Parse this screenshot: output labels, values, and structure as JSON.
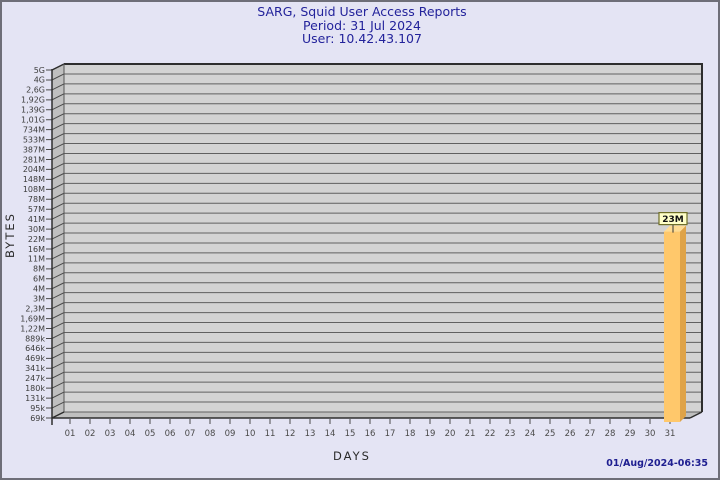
{
  "header": {
    "title": "SARG, Squid User Access Reports",
    "period": "Period: 31 Jul 2024",
    "user": "User: 10.42.43.107"
  },
  "footer": {
    "generated_at": "01/Aug/2024-06:35"
  },
  "colors": {
    "page_bg": "#E4E4F4",
    "title_text": "#23239B",
    "timestamp_text": "#1E1E90",
    "plot_bg": "#D3D3D3",
    "wall_bg": "#BFBFBF",
    "grid_line": "#606060",
    "edge_line": "#2E2E2E",
    "bar_front": "#FFC86B",
    "bar_side": "#DFA348",
    "bar_top": "#FFDC93",
    "annotation_bg": "#FFFFC8",
    "annotation_border": "#6F6F28",
    "axis_text": "#3C3C3C"
  },
  "chart_data": {
    "type": "bar",
    "title": "SARG, Squid User Access Reports",
    "subtitle": [
      "Period: 31 Jul 2024",
      "User: 10.42.43.107"
    ],
    "xlabel": "DAYS",
    "ylabel": "BYTES",
    "grid": true,
    "legend": false,
    "y_scale": "log-discrete-ticks",
    "y_ticks": [
      "5G",
      "4G",
      "2,6G",
      "1,92G",
      "1,39G",
      "1,01G",
      "734M",
      "533M",
      "387M",
      "281M",
      "204M",
      "148M",
      "108M",
      "78M",
      "57M",
      "41M",
      "30M",
      "22M",
      "16M",
      "11M",
      "8M",
      "6M",
      "4M",
      "3M",
      "2,3M",
      "1,69M",
      "1,22M",
      "889k",
      "646k",
      "469k",
      "341k",
      "247k",
      "180k",
      "131k",
      "95k",
      "69k"
    ],
    "x_categories": [
      "01",
      "02",
      "03",
      "04",
      "05",
      "06",
      "07",
      "08",
      "09",
      "10",
      "11",
      "12",
      "13",
      "14",
      "15",
      "16",
      "17",
      "18",
      "19",
      "20",
      "21",
      "22",
      "23",
      "24",
      "25",
      "26",
      "27",
      "28",
      "29",
      "30",
      "31"
    ],
    "bars": [
      {
        "category": "31",
        "value_label": "23M",
        "value_bytes": 23000000
      }
    ]
  }
}
